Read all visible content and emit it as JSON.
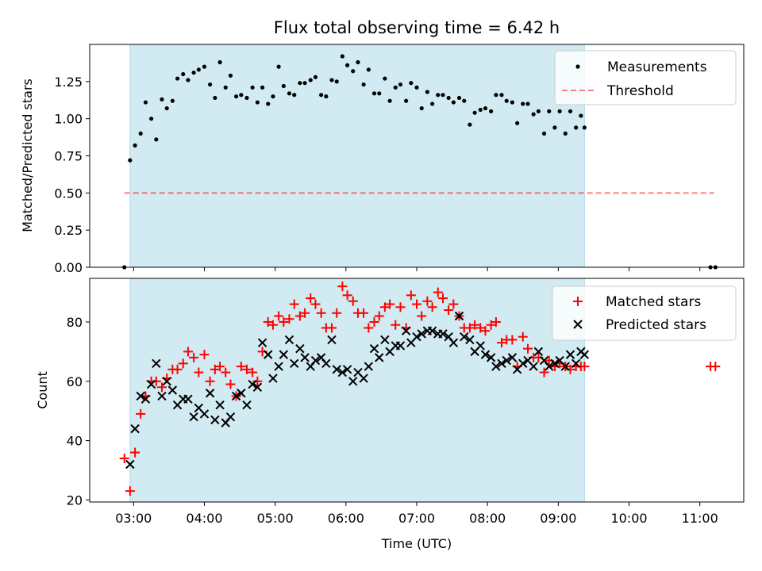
{
  "chart_data": {
    "type": "scatter",
    "title": "Flux total observing time = 6.42 h",
    "xlabel": "Time (UTC)",
    "x_tick_labels": [
      "03:00",
      "04:00",
      "05:00",
      "06:00",
      "07:00",
      "08:00",
      "09:00",
      "10:00",
      "11:00"
    ],
    "x_tick_hours": [
      3,
      4,
      5,
      6,
      7,
      8,
      9,
      10,
      11
    ],
    "xlim_hours": [
      2.38,
      11.62
    ],
    "observing_window_hours": [
      2.95,
      9.37
    ],
    "shade_color": "#add8e6",
    "top_panel": {
      "ylabel": "Matched/Predicted stars",
      "ylim": [
        0,
        1.5
      ],
      "y_ticks": [
        0.0,
        0.25,
        0.5,
        0.75,
        1.0,
        1.25
      ],
      "y_tick_labels": [
        "0.00",
        "0.25",
        "0.50",
        "0.75",
        "1.00",
        "1.25"
      ],
      "legend": [
        "Measurements",
        "Threshold"
      ],
      "threshold": {
        "name": "Threshold",
        "value": 0.5,
        "x_range_hours": [
          2.87,
          11.2
        ],
        "color": "#ff0000",
        "alpha": 0.5
      },
      "measurements": {
        "name": "Measurements",
        "color": "#000000",
        "x_hours": [
          2.87,
          2.95,
          3.02,
          3.1,
          3.17,
          3.25,
          3.32,
          3.4,
          3.47,
          3.55,
          3.62,
          3.7,
          3.77,
          3.85,
          3.92,
          4.0,
          4.08,
          4.15,
          4.22,
          4.3,
          4.37,
          4.45,
          4.52,
          4.6,
          4.68,
          4.75,
          4.82,
          4.9,
          4.97,
          5.05,
          5.12,
          5.2,
          5.27,
          5.35,
          5.42,
          5.5,
          5.57,
          5.65,
          5.72,
          5.8,
          5.87,
          5.95,
          6.02,
          6.1,
          6.17,
          6.25,
          6.32,
          6.4,
          6.47,
          6.55,
          6.62,
          6.7,
          6.77,
          6.85,
          6.92,
          7.0,
          7.07,
          7.15,
          7.22,
          7.3,
          7.37,
          7.45,
          7.52,
          7.6,
          7.67,
          7.75,
          7.82,
          7.9,
          7.97,
          8.05,
          8.12,
          8.2,
          8.27,
          8.35,
          8.42,
          8.5,
          8.57,
          8.65,
          8.72,
          8.8,
          8.87,
          8.95,
          9.02,
          9.1,
          9.17,
          9.25,
          9.32,
          9.37,
          11.15,
          11.22
        ],
        "y": [
          0.0,
          0.72,
          0.82,
          0.9,
          1.11,
          1.0,
          0.86,
          1.13,
          1.07,
          1.12,
          1.27,
          1.3,
          1.26,
          1.31,
          1.33,
          1.35,
          1.23,
          1.14,
          1.38,
          1.21,
          1.29,
          1.15,
          1.16,
          1.14,
          1.21,
          1.11,
          1.21,
          1.1,
          1.15,
          1.35,
          1.22,
          1.17,
          1.16,
          1.24,
          1.24,
          1.26,
          1.28,
          1.16,
          1.15,
          1.26,
          1.25,
          1.42,
          1.36,
          1.32,
          1.38,
          1.23,
          1.33,
          1.17,
          1.17,
          1.27,
          1.12,
          1.21,
          1.23,
          1.12,
          1.24,
          1.21,
          1.07,
          1.18,
          1.1,
          1.16,
          1.16,
          1.14,
          1.11,
          1.14,
          1.12,
          0.96,
          1.04,
          1.06,
          1.07,
          1.05,
          1.16,
          1.16,
          1.12,
          1.11,
          0.97,
          1.1,
          1.1,
          1.03,
          1.05,
          0.9,
          1.05,
          0.94,
          1.05,
          0.9,
          1.05,
          0.94,
          1.02,
          0.94,
          0.0,
          0.0
        ]
      }
    },
    "bottom_panel": {
      "ylabel": "Count",
      "ylim": [
        19.3,
        94.7
      ],
      "y_ticks": [
        20,
        40,
        60,
        80
      ],
      "y_tick_labels": [
        "20",
        "40",
        "60",
        "80"
      ],
      "legend": [
        "Matched stars",
        "Predicted stars"
      ],
      "series": [
        {
          "name": "Matched stars",
          "marker": "plus",
          "color": "#ff0000",
          "x_hours": [
            2.87,
            2.95,
            3.02,
            3.1,
            3.17,
            3.25,
            3.32,
            3.4,
            3.47,
            3.55,
            3.62,
            3.7,
            3.77,
            3.85,
            3.92,
            4.0,
            4.08,
            4.15,
            4.22,
            4.3,
            4.37,
            4.45,
            4.52,
            4.6,
            4.68,
            4.75,
            4.82,
            4.9,
            4.97,
            5.05,
            5.12,
            5.2,
            5.27,
            5.35,
            5.42,
            5.5,
            5.57,
            5.65,
            5.72,
            5.8,
            5.87,
            5.95,
            6.02,
            6.1,
            6.17,
            6.25,
            6.32,
            6.4,
            6.47,
            6.55,
            6.62,
            6.7,
            6.77,
            6.85,
            6.92,
            7.0,
            7.07,
            7.15,
            7.22,
            7.3,
            7.37,
            7.45,
            7.52,
            7.6,
            7.67,
            7.75,
            7.82,
            7.9,
            7.97,
            8.05,
            8.12,
            8.2,
            8.27,
            8.35,
            8.42,
            8.5,
            8.57,
            8.65,
            8.72,
            8.8,
            8.87,
            8.95,
            9.02,
            9.1,
            9.17,
            9.25,
            9.32,
            9.37,
            11.15,
            11.22
          ],
          "y": [
            34,
            23,
            36,
            49,
            55,
            60,
            60,
            58,
            61,
            64,
            64,
            66,
            70,
            68,
            63,
            69,
            60,
            64,
            65,
            63,
            59,
            55,
            65,
            64,
            63,
            60,
            70,
            80,
            79,
            82,
            80,
            81,
            86,
            82,
            83,
            88,
            86,
            83,
            78,
            78,
            83,
            92,
            89,
            87,
            83,
            83,
            78,
            80,
            82,
            85,
            86,
            79,
            85,
            78,
            89,
            86,
            82,
            87,
            85,
            90,
            88,
            84,
            86,
            82,
            78,
            78,
            79,
            78,
            77,
            79,
            80,
            73,
            74,
            74,
            65,
            75,
            71,
            68,
            68,
            63,
            67,
            65,
            66,
            65,
            64,
            65,
            65,
            65,
            65,
            65
          ]
        },
        {
          "name": "Predicted stars",
          "marker": "x",
          "color": "#000000",
          "x_hours": [
            2.95,
            3.02,
            3.1,
            3.17,
            3.25,
            3.32,
            3.4,
            3.47,
            3.55,
            3.62,
            3.7,
            3.77,
            3.85,
            3.92,
            4.0,
            4.08,
            4.15,
            4.22,
            4.3,
            4.37,
            4.45,
            4.52,
            4.6,
            4.68,
            4.75,
            4.82,
            4.9,
            4.97,
            5.05,
            5.12,
            5.2,
            5.27,
            5.35,
            5.42,
            5.5,
            5.57,
            5.65,
            5.72,
            5.8,
            5.87,
            5.95,
            6.02,
            6.1,
            6.17,
            6.25,
            6.32,
            6.4,
            6.47,
            6.55,
            6.62,
            6.7,
            6.77,
            6.85,
            6.92,
            7.0,
            7.07,
            7.15,
            7.22,
            7.3,
            7.37,
            7.45,
            7.52,
            7.6,
            7.67,
            7.75,
            7.82,
            7.9,
            7.97,
            8.05,
            8.12,
            8.2,
            8.27,
            8.35,
            8.42,
            8.5,
            8.57,
            8.65,
            8.72,
            8.8,
            8.87,
            8.95,
            9.02,
            9.1,
            9.17,
            9.25,
            9.32,
            9.37
          ],
          "y": [
            32,
            44,
            55,
            54,
            59,
            66,
            55,
            60,
            57,
            52,
            54,
            54,
            48,
            51,
            49,
            56,
            47,
            52,
            46,
            48,
            55,
            56,
            52,
            59,
            58,
            73,
            69,
            61,
            65,
            69,
            74,
            66,
            71,
            68,
            65,
            67,
            68,
            66,
            74,
            64,
            63,
            64,
            60,
            63,
            61,
            65,
            71,
            68,
            74,
            70,
            72,
            72,
            77,
            73,
            75,
            76,
            77,
            77,
            76,
            76,
            75,
            73,
            82,
            75,
            74,
            70,
            72,
            69,
            68,
            65,
            66,
            67,
            68,
            64,
            66,
            67,
            65,
            70,
            67,
            65,
            66,
            67,
            65,
            69,
            66,
            70,
            69
          ]
        }
      ]
    }
  }
}
